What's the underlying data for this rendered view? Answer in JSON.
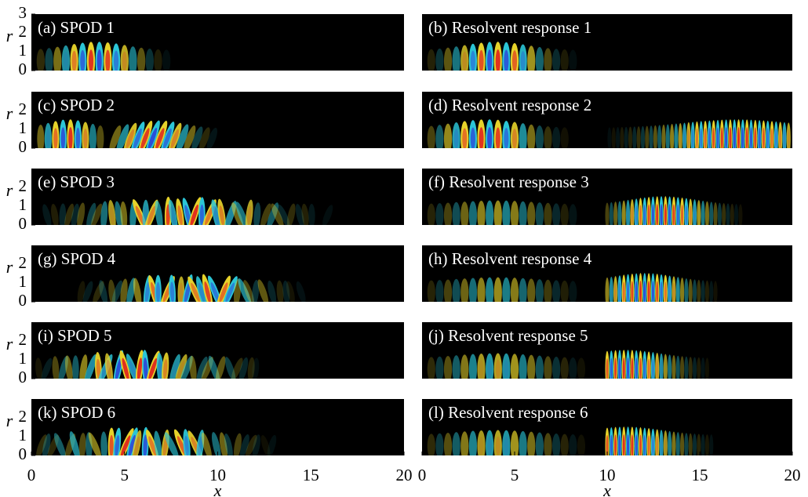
{
  "chart_data": [
    {
      "type": "field",
      "title": "(a) SPOD 1",
      "ylabel": "r",
      "xlim": [
        0,
        20
      ],
      "ylim": [
        0,
        3
      ],
      "yticks": [
        0,
        1,
        2,
        3
      ]
    },
    {
      "type": "field",
      "title": "(b) Resolvent response 1",
      "xlim": [
        0,
        20
      ],
      "ylim": [
        0,
        3
      ]
    },
    {
      "type": "field",
      "title": "(c) SPOD 2",
      "ylabel": "r",
      "xlim": [
        0,
        20
      ],
      "ylim": [
        0,
        3
      ],
      "yticks": [
        0,
        1,
        2
      ]
    },
    {
      "type": "field",
      "title": "(d) Resolvent response 2",
      "xlim": [
        0,
        20
      ],
      "ylim": [
        0,
        3
      ]
    },
    {
      "type": "field",
      "title": "(e) SPOD 3",
      "ylabel": "r",
      "xlim": [
        0,
        20
      ],
      "ylim": [
        0,
        3
      ],
      "yticks": [
        0,
        1,
        2
      ]
    },
    {
      "type": "field",
      "title": "(f) Resolvent response 3",
      "xlim": [
        0,
        20
      ],
      "ylim": [
        0,
        3
      ]
    },
    {
      "type": "field",
      "title": "(g) SPOD 4",
      "ylabel": "r",
      "xlim": [
        0,
        20
      ],
      "ylim": [
        0,
        3
      ],
      "yticks": [
        0,
        1,
        2
      ]
    },
    {
      "type": "field",
      "title": "(h) Resolvent response 4",
      "xlim": [
        0,
        20
      ],
      "ylim": [
        0,
        3
      ]
    },
    {
      "type": "field",
      "title": "(i) SPOD 5",
      "ylabel": "r",
      "xlim": [
        0,
        20
      ],
      "ylim": [
        0,
        3
      ],
      "yticks": [
        0,
        1,
        2
      ]
    },
    {
      "type": "field",
      "title": "(j) Resolvent response 5",
      "xlim": [
        0,
        20
      ],
      "ylim": [
        0,
        3
      ]
    },
    {
      "type": "field",
      "title": "(k) SPOD 6",
      "ylabel": "r",
      "xlabel": "x",
      "xlim": [
        0,
        20
      ],
      "ylim": [
        0,
        3
      ],
      "yticks": [
        0,
        1,
        2
      ],
      "xticks": [
        0,
        5,
        10,
        15,
        20
      ]
    },
    {
      "type": "field",
      "title": "(l) Resolvent response 6",
      "xlabel": "x",
      "xlim": [
        0,
        20
      ],
      "ylim": [
        0,
        3
      ],
      "xticks": [
        0,
        5,
        10,
        15,
        20
      ]
    }
  ]
}
